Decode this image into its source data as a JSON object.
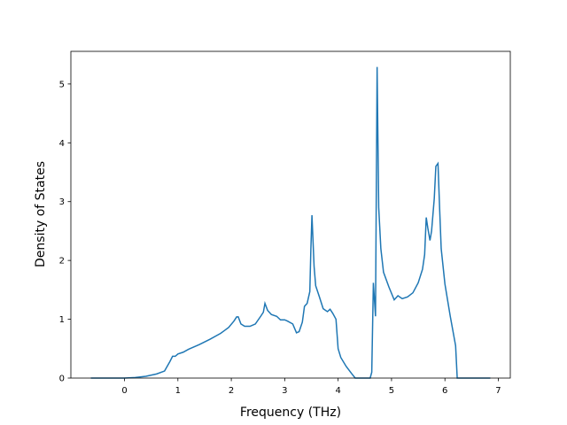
{
  "chart_data": {
    "type": "line",
    "xlabel": "Frequency (THz)",
    "ylabel": "Density of States",
    "xlim": [
      -1.004,
      7.224
    ],
    "ylim": [
      0,
      5.555
    ],
    "xticks": [
      0,
      1,
      2,
      3,
      4,
      5,
      6,
      7
    ],
    "yticks": [
      0,
      1,
      2,
      3,
      4,
      5
    ],
    "grid": false,
    "series": [
      {
        "color": "#1f77b4",
        "x": [
          -0.63,
          0,
          0.2,
          0.4,
          0.6,
          0.75,
          0.85,
          0.9,
          0.95,
          1.0,
          1.1,
          1.2,
          1.4,
          1.6,
          1.8,
          1.95,
          2.05,
          2.1,
          2.13,
          2.18,
          2.25,
          2.35,
          2.45,
          2.55,
          2.6,
          2.63,
          2.68,
          2.75,
          2.85,
          2.92,
          3.0,
          3.05,
          3.15,
          3.22,
          3.27,
          3.33,
          3.37,
          3.42,
          3.47,
          3.49,
          3.51,
          3.55,
          3.58,
          3.65,
          3.72,
          3.8,
          3.85,
          3.9,
          3.96,
          4.0,
          4.05,
          4.15,
          4.25,
          4.32,
          4.6,
          4.63,
          4.66,
          4.7,
          4.73,
          4.76,
          4.8,
          4.85,
          4.95,
          5.05,
          5.12,
          5.2,
          5.3,
          5.4,
          5.5,
          5.58,
          5.62,
          5.65,
          5.68,
          5.72,
          5.75,
          5.8,
          5.83,
          5.87,
          5.9,
          5.93,
          6.0,
          6.1,
          6.2,
          6.23,
          6.85
        ],
        "values": [
          0,
          0,
          0.01,
          0.03,
          0.07,
          0.12,
          0.28,
          0.37,
          0.37,
          0.41,
          0.44,
          0.49,
          0.57,
          0.66,
          0.76,
          0.86,
          0.97,
          1.04,
          1.04,
          0.92,
          0.88,
          0.88,
          0.92,
          1.05,
          1.12,
          1.27,
          1.15,
          1.08,
          1.05,
          0.99,
          0.99,
          0.97,
          0.92,
          0.77,
          0.79,
          0.95,
          1.22,
          1.27,
          1.47,
          2.2,
          2.77,
          1.9,
          1.57,
          1.38,
          1.18,
          1.13,
          1.17,
          1.1,
          1.0,
          0.5,
          0.35,
          0.2,
          0.08,
          0,
          0,
          0.1,
          1.62,
          1.05,
          5.29,
          2.9,
          2.2,
          1.8,
          1.55,
          1.33,
          1.4,
          1.35,
          1.38,
          1.45,
          1.62,
          1.85,
          2.1,
          2.73,
          2.55,
          2.34,
          2.5,
          3.05,
          3.6,
          3.65,
          2.9,
          2.2,
          1.6,
          1.05,
          0.55,
          0,
          0
        ]
      }
    ]
  }
}
